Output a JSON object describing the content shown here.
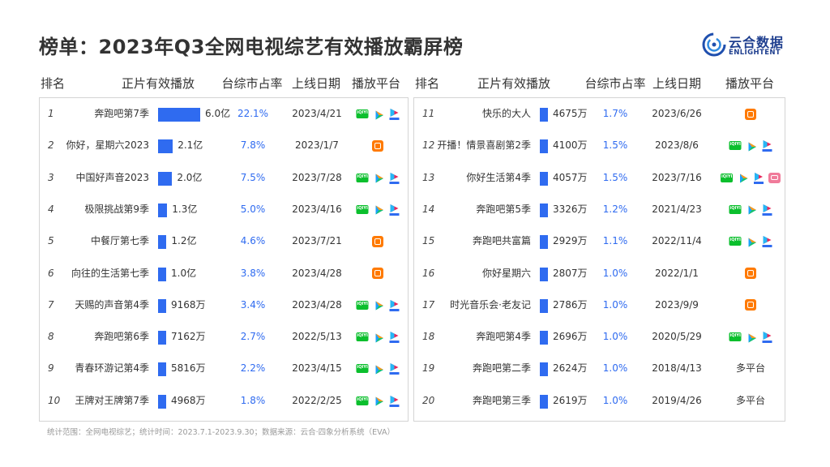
{
  "title": "榜单：2023年Q3全网电视综艺有效播放霸屏榜",
  "logo": {
    "cn": "云合数据",
    "en": "ENLIGHTENT"
  },
  "headers": {
    "rank": "排名",
    "name_play": "正片有效播放",
    "share": "台综市占率",
    "date": "上线日期",
    "platform": "播放平台"
  },
  "colors": {
    "bar": "#2f6bf0",
    "share_text": "#2f6bf0",
    "iqiyi": "#0bbf2d",
    "mango": "#ff7a00",
    "tencent": "#1aa0ff",
    "youku": "#e8265a"
  },
  "platform_icons": {
    "iqiyi": "iqiyi-logo-icon",
    "tencent": "tencent-video-logo-icon",
    "youku": "youku-logo-icon",
    "mango": "mango-tv-logo-icon",
    "bili": "bilibili-logo-icon"
  },
  "chart_data": {
    "type": "bar",
    "orientation": "horizontal",
    "unit_note": "正片有效播放（亿 / 万）",
    "categories": [
      "奔跑吧第7季",
      "你好，星期六2023",
      "中国好声音2023",
      "极限挑战第9季",
      "中餐厅第七季",
      "向往的生活第七季",
      "天赐的声音第4季",
      "奔跑吧第6季",
      "青春环游记第4季",
      "王牌对王牌第7季",
      "快乐的大人",
      "开播！情景喜剧第2季",
      "你好生活第4季",
      "奔跑吧第5季",
      "奔跑吧共富篇",
      "你好星期六",
      "时光音乐会·老友记",
      "奔跑吧第4季",
      "奔跑吧第二季",
      "奔跑吧第三季"
    ],
    "values_wan": [
      60000,
      21000,
      20000,
      13000,
      12000,
      10000,
      9168,
      7162,
      5816,
      4968,
      4675,
      4100,
      4057,
      3326,
      2929,
      2807,
      2786,
      2696,
      2624,
      2619
    ],
    "rows": [
      {
        "rank": "1",
        "name": "奔跑吧第7季",
        "play": "6.0亿",
        "share": "22.1%",
        "date": "2023/4/21",
        "platforms": [
          "iqiyi",
          "tencent",
          "youku"
        ]
      },
      {
        "rank": "2",
        "name": "你好，星期六2023",
        "play": "2.1亿",
        "share": "7.8%",
        "date": "2023/1/7",
        "platforms": [
          "mango"
        ]
      },
      {
        "rank": "3",
        "name": "中国好声音2023",
        "play": "2.0亿",
        "share": "7.5%",
        "date": "2023/7/28",
        "platforms": [
          "iqiyi",
          "tencent",
          "youku"
        ]
      },
      {
        "rank": "4",
        "name": "极限挑战第9季",
        "play": "1.3亿",
        "share": "5.0%",
        "date": "2023/4/16",
        "platforms": [
          "iqiyi",
          "tencent",
          "youku"
        ]
      },
      {
        "rank": "5",
        "name": "中餐厅第七季",
        "play": "1.2亿",
        "share": "4.6%",
        "date": "2023/7/21",
        "platforms": [
          "mango"
        ]
      },
      {
        "rank": "6",
        "name": "向往的生活第七季",
        "play": "1.0亿",
        "share": "3.8%",
        "date": "2023/4/28",
        "platforms": [
          "mango"
        ]
      },
      {
        "rank": "7",
        "name": "天赐的声音第4季",
        "play": "9168万",
        "share": "3.4%",
        "date": "2023/4/28",
        "platforms": [
          "iqiyi",
          "tencent",
          "youku"
        ]
      },
      {
        "rank": "8",
        "name": "奔跑吧第6季",
        "play": "7162万",
        "share": "2.7%",
        "date": "2022/5/13",
        "platforms": [
          "iqiyi",
          "tencent",
          "youku"
        ]
      },
      {
        "rank": "9",
        "name": "青春环游记第4季",
        "play": "5816万",
        "share": "2.2%",
        "date": "2023/4/15",
        "platforms": [
          "iqiyi",
          "tencent",
          "youku"
        ]
      },
      {
        "rank": "10",
        "name": "王牌对王牌第7季",
        "play": "4968万",
        "share": "1.8%",
        "date": "2022/2/25",
        "platforms": [
          "iqiyi",
          "tencent",
          "youku"
        ]
      },
      {
        "rank": "11",
        "name": "快乐的大人",
        "play": "4675万",
        "share": "1.7%",
        "date": "2023/6/26",
        "platforms": [
          "mango"
        ]
      },
      {
        "rank": "12",
        "name": "开播！情景喜剧第2季",
        "play": "4100万",
        "share": "1.5%",
        "date": "2023/8/6",
        "platforms": [
          "iqiyi",
          "tencent",
          "youku"
        ]
      },
      {
        "rank": "13",
        "name": "你好生活第4季",
        "play": "4057万",
        "share": "1.5%",
        "date": "2023/7/16",
        "platforms": [
          "iqiyi",
          "tencent",
          "youku",
          "bili"
        ]
      },
      {
        "rank": "14",
        "name": "奔跑吧第5季",
        "play": "3326万",
        "share": "1.2%",
        "date": "2021/4/23",
        "platforms": [
          "iqiyi",
          "tencent",
          "youku"
        ]
      },
      {
        "rank": "15",
        "name": "奔跑吧共富篇",
        "play": "2929万",
        "share": "1.1%",
        "date": "2022/11/4",
        "platforms": [
          "iqiyi",
          "tencent",
          "youku"
        ]
      },
      {
        "rank": "16",
        "name": "你好星期六",
        "play": "2807万",
        "share": "1.0%",
        "date": "2022/1/1",
        "platforms": [
          "mango"
        ]
      },
      {
        "rank": "17",
        "name": "时光音乐会·老友记",
        "play": "2786万",
        "share": "1.0%",
        "date": "2023/9/9",
        "platforms": [
          "mango"
        ]
      },
      {
        "rank": "18",
        "name": "奔跑吧第4季",
        "play": "2696万",
        "share": "1.0%",
        "date": "2020/5/29",
        "platforms": [
          "iqiyi",
          "tencent",
          "youku"
        ]
      },
      {
        "rank": "19",
        "name": "奔跑吧第二季",
        "play": "2624万",
        "share": "1.0%",
        "date": "2018/4/13",
        "platforms_text": "多平台"
      },
      {
        "rank": "20",
        "name": "奔跑吧第三季",
        "play": "2619万",
        "share": "1.0%",
        "date": "2019/4/26",
        "platforms_text": "多平台"
      }
    ]
  },
  "footnote": "统计范围：全网电视综艺；统计时间：2023.7.1-2023.9.30；数据来源：云合·四象分析系统（EVA）"
}
